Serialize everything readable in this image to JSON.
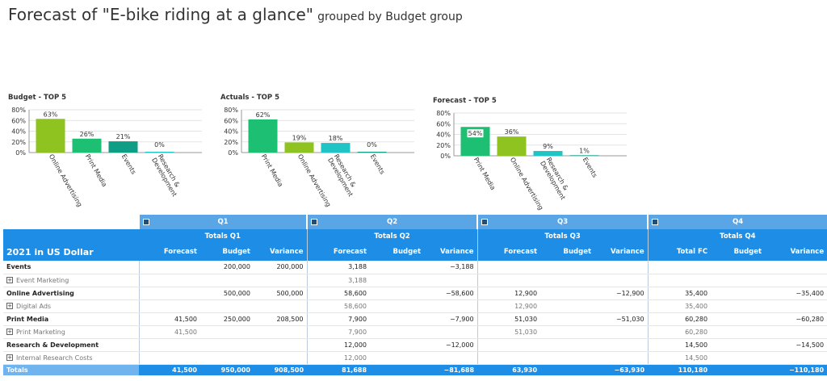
{
  "page": {
    "title_main": "Forecast of \"E-bike riding at a glance\"",
    "title_sub": "grouped by Budget group"
  },
  "colors": {
    "Online Advertising": "#8fc31f",
    "Print Media": "#1dbf73",
    "Events": "#0e9e86",
    "Research & Development": "#20c4c4",
    "header_dark": "#1e8de6",
    "header_light": "#5aa5e6"
  },
  "chart_data": [
    {
      "type": "bar",
      "title": "Budget - TOP 5",
      "categories": [
        "Online Advertising",
        "Print Media",
        "Events",
        "Research & Development"
      ],
      "values": [
        63,
        26,
        21,
        0
      ],
      "labels": [
        "63%",
        "26%",
        "21%",
        "0%"
      ],
      "ylim": [
        0,
        80
      ],
      "yticks": [
        "0%",
        "20%",
        "40%",
        "60%",
        "80%"
      ],
      "grid": true
    },
    {
      "type": "bar",
      "title": "Actuals - TOP 5",
      "categories": [
        "Print Media",
        "Online Advertising",
        "Research & Development",
        "Events"
      ],
      "values": [
        62,
        19,
        18,
        0
      ],
      "labels": [
        "62%",
        "19%",
        "18%",
        "0%"
      ],
      "ylim": [
        0,
        80
      ],
      "yticks": [
        "0%",
        "20%",
        "40%",
        "60%",
        "80%"
      ],
      "grid": true
    },
    {
      "type": "bar",
      "title": "Forecast - TOP 5",
      "categories": [
        "Print Media",
        "Online Advertising",
        "Research & Development",
        "Events"
      ],
      "values": [
        54,
        36,
        9,
        1
      ],
      "labels": [
        "54%",
        "36%",
        "9%",
        "1%"
      ],
      "ylim": [
        0,
        80
      ],
      "yticks": [
        "0%",
        "20%",
        "40%",
        "60%",
        "80%"
      ],
      "grid": true
    }
  ],
  "table": {
    "quarters": [
      "Q1",
      "Q2",
      "Q3",
      "Q4"
    ],
    "totals_labels": [
      "Totals Q1",
      "Totals Q2",
      "Totals Q3",
      "Totals Q4"
    ],
    "corner_label": "2021 in US Dollar",
    "columns": [
      [
        "Forecast",
        "Budget",
        "Variance"
      ],
      [
        "Forecast",
        "Budget",
        "Variance"
      ],
      [
        "Forecast",
        "Budget",
        "Variance"
      ],
      [
        "Total FC",
        "Budget",
        "Variance"
      ]
    ],
    "rows": [
      {
        "label": "Events",
        "kind": "grp",
        "cells": [
          "",
          "200,000",
          "200,000",
          "3,188",
          "",
          "−3,188",
          "",
          "",
          "",
          "",
          "",
          ""
        ]
      },
      {
        "label": "Event Marketing",
        "kind": "sub",
        "cells": [
          "",
          "",
          "",
          "3,188",
          "",
          "",
          "",
          "",
          "",
          "",
          "",
          ""
        ]
      },
      {
        "label": "Online Advertising",
        "kind": "grp",
        "cells": [
          "",
          "500,000",
          "500,000",
          "58,600",
          "",
          "−58,600",
          "12,900",
          "",
          "−12,900",
          "35,400",
          "",
          "−35,400"
        ]
      },
      {
        "label": "Digital Ads",
        "kind": "sub",
        "cells": [
          "",
          "",
          "",
          "58,600",
          "",
          "",
          "12,900",
          "",
          "",
          "35,400",
          "",
          ""
        ]
      },
      {
        "label": "Print Media",
        "kind": "grp",
        "cells": [
          "41,500",
          "250,000",
          "208,500",
          "7,900",
          "",
          "−7,900",
          "51,030",
          "",
          "−51,030",
          "60,280",
          "",
          "−60,280"
        ]
      },
      {
        "label": "Print Marketing",
        "kind": "sub",
        "cells": [
          "41,500",
          "",
          "",
          "7,900",
          "",
          "",
          "51,030",
          "",
          "",
          "60,280",
          "",
          ""
        ]
      },
      {
        "label": "Research & Development",
        "kind": "grp",
        "cells": [
          "",
          "",
          "",
          "12,000",
          "",
          "−12,000",
          "",
          "",
          "",
          "14,500",
          "",
          "−14,500"
        ]
      },
      {
        "label": "Internal Research Costs",
        "kind": "sub",
        "cells": [
          "",
          "",
          "",
          "12,000",
          "",
          "",
          "",
          "",
          "",
          "14,500",
          "",
          ""
        ]
      }
    ],
    "totals": {
      "label": "Totals",
      "cells": [
        "41,500",
        "950,000",
        "908,500",
        "81,688",
        "",
        "−81,688",
        "63,930",
        "",
        "−63,930",
        "110,180",
        "",
        "−110,180"
      ]
    }
  }
}
